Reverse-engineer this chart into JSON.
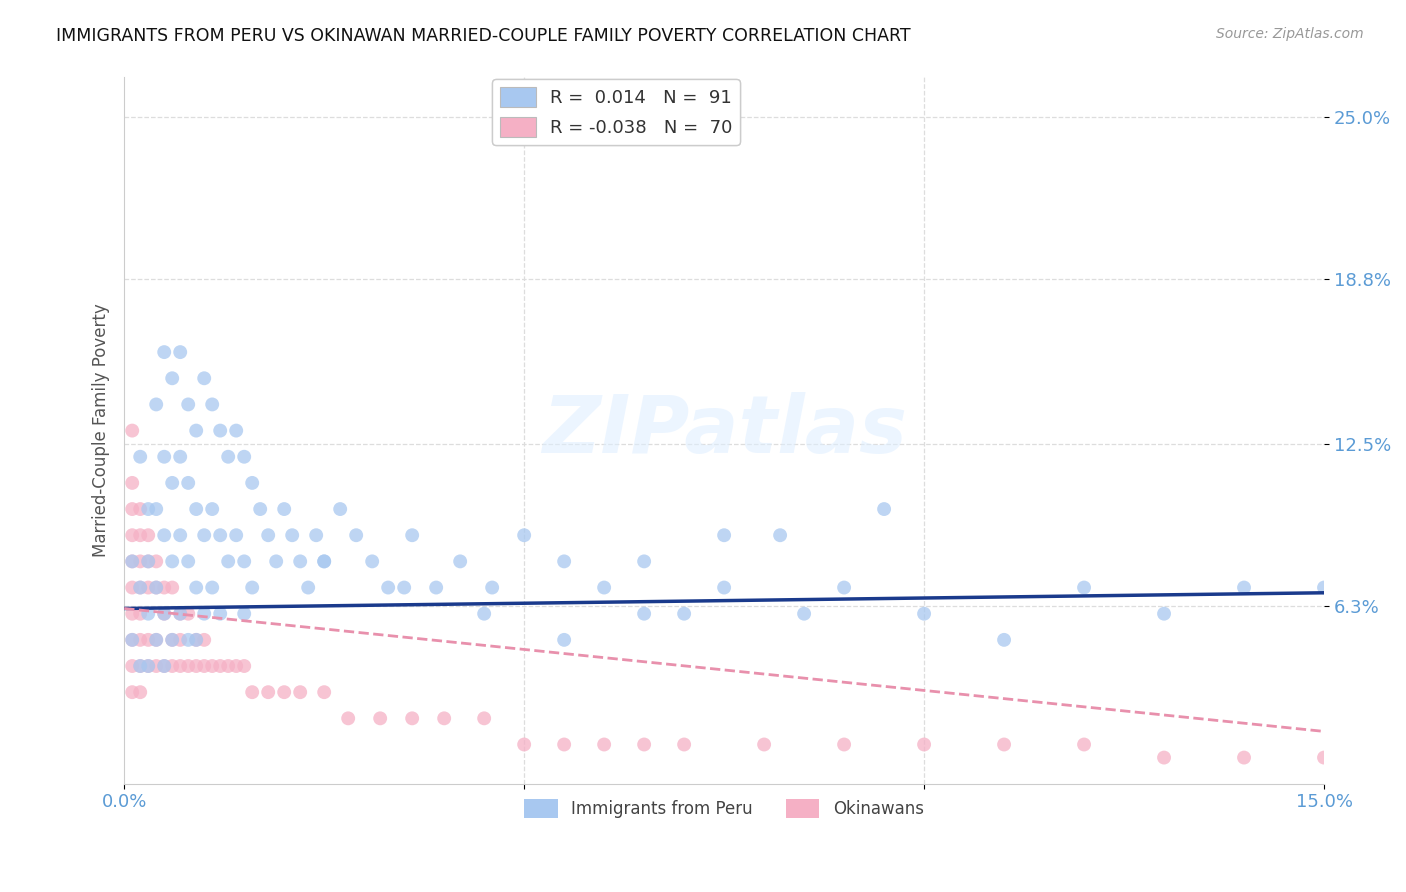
{
  "title": "IMMIGRANTS FROM PERU VS OKINAWAN MARRIED-COUPLE FAMILY POVERTY CORRELATION CHART",
  "source": "Source: ZipAtlas.com",
  "ylabel": "Married-Couple Family Poverty",
  "xmin": 0.0,
  "xmax": 0.15,
  "ymin": -0.005,
  "ymax": 0.265,
  "ytick_vals": [
    0.063,
    0.125,
    0.188,
    0.25
  ],
  "ytick_labels": [
    "6.3%",
    "12.5%",
    "18.8%",
    "25.0%"
  ],
  "xtick_vals": [
    0.0,
    0.05,
    0.1,
    0.15
  ],
  "xtick_labels": [
    "0.0%",
    "",
    "",
    "15.0%"
  ],
  "blue_color": "#a8c8f0",
  "pink_color": "#f5b0c5",
  "blue_line_color": "#1a3a8c",
  "pink_line_color": "#e890ac",
  "tick_label_color": "#5b9bd5",
  "legend_label1": "Immigrants from Peru",
  "legend_label2": "Okinawans",
  "R_blue": 0.014,
  "N_blue": 91,
  "R_pink": -0.038,
  "N_pink": 70,
  "blue_trend_x0": 0.0,
  "blue_trend_y0": 0.062,
  "blue_trend_x1": 0.15,
  "blue_trend_y1": 0.068,
  "pink_trend_x0": 0.0,
  "pink_trend_y0": 0.062,
  "pink_trend_x1": 0.15,
  "pink_trend_y1": 0.015,
  "blue_scatter_x": [
    0.001,
    0.001,
    0.002,
    0.002,
    0.002,
    0.003,
    0.003,
    0.003,
    0.003,
    0.004,
    0.004,
    0.004,
    0.004,
    0.005,
    0.005,
    0.005,
    0.005,
    0.005,
    0.006,
    0.006,
    0.006,
    0.006,
    0.007,
    0.007,
    0.007,
    0.007,
    0.008,
    0.008,
    0.008,
    0.008,
    0.009,
    0.009,
    0.009,
    0.009,
    0.01,
    0.01,
    0.01,
    0.011,
    0.011,
    0.011,
    0.012,
    0.012,
    0.012,
    0.013,
    0.013,
    0.014,
    0.014,
    0.015,
    0.015,
    0.016,
    0.016,
    0.017,
    0.018,
    0.019,
    0.02,
    0.021,
    0.022,
    0.023,
    0.024,
    0.025,
    0.027,
    0.029,
    0.031,
    0.033,
    0.036,
    0.039,
    0.042,
    0.046,
    0.05,
    0.055,
    0.06,
    0.065,
    0.07,
    0.075,
    0.082,
    0.09,
    0.1,
    0.11,
    0.12,
    0.13,
    0.14,
    0.15,
    0.015,
    0.025,
    0.035,
    0.045,
    0.055,
    0.065,
    0.075,
    0.085,
    0.095
  ],
  "blue_scatter_y": [
    0.08,
    0.05,
    0.12,
    0.07,
    0.04,
    0.1,
    0.08,
    0.06,
    0.04,
    0.14,
    0.1,
    0.07,
    0.05,
    0.16,
    0.12,
    0.09,
    0.06,
    0.04,
    0.15,
    0.11,
    0.08,
    0.05,
    0.16,
    0.12,
    0.09,
    0.06,
    0.14,
    0.11,
    0.08,
    0.05,
    0.13,
    0.1,
    0.07,
    0.05,
    0.15,
    0.09,
    0.06,
    0.14,
    0.1,
    0.07,
    0.13,
    0.09,
    0.06,
    0.12,
    0.08,
    0.13,
    0.09,
    0.12,
    0.08,
    0.11,
    0.07,
    0.1,
    0.09,
    0.08,
    0.1,
    0.09,
    0.08,
    0.07,
    0.09,
    0.08,
    0.1,
    0.09,
    0.08,
    0.07,
    0.09,
    0.07,
    0.08,
    0.07,
    0.09,
    0.08,
    0.07,
    0.08,
    0.06,
    0.09,
    0.09,
    0.07,
    0.06,
    0.05,
    0.07,
    0.06,
    0.07,
    0.07,
    0.06,
    0.08,
    0.07,
    0.06,
    0.05,
    0.06,
    0.07,
    0.06,
    0.1
  ],
  "pink_scatter_x": [
    0.001,
    0.001,
    0.001,
    0.001,
    0.001,
    0.001,
    0.001,
    0.001,
    0.001,
    0.001,
    0.002,
    0.002,
    0.002,
    0.002,
    0.002,
    0.002,
    0.002,
    0.002,
    0.003,
    0.003,
    0.003,
    0.003,
    0.003,
    0.004,
    0.004,
    0.004,
    0.004,
    0.005,
    0.005,
    0.005,
    0.006,
    0.006,
    0.006,
    0.007,
    0.007,
    0.007,
    0.008,
    0.008,
    0.009,
    0.009,
    0.01,
    0.01,
    0.011,
    0.012,
    0.013,
    0.014,
    0.015,
    0.016,
    0.018,
    0.02,
    0.022,
    0.025,
    0.028,
    0.032,
    0.036,
    0.04,
    0.045,
    0.05,
    0.055,
    0.06,
    0.065,
    0.07,
    0.08,
    0.09,
    0.1,
    0.11,
    0.12,
    0.13,
    0.14,
    0.15
  ],
  "pink_scatter_y": [
    0.13,
    0.11,
    0.1,
    0.09,
    0.08,
    0.07,
    0.06,
    0.05,
    0.04,
    0.03,
    0.1,
    0.09,
    0.08,
    0.07,
    0.06,
    0.05,
    0.04,
    0.03,
    0.09,
    0.08,
    0.07,
    0.05,
    0.04,
    0.08,
    0.07,
    0.05,
    0.04,
    0.07,
    0.06,
    0.04,
    0.07,
    0.05,
    0.04,
    0.06,
    0.05,
    0.04,
    0.06,
    0.04,
    0.05,
    0.04,
    0.05,
    0.04,
    0.04,
    0.04,
    0.04,
    0.04,
    0.04,
    0.03,
    0.03,
    0.03,
    0.03,
    0.03,
    0.02,
    0.02,
    0.02,
    0.02,
    0.02,
    0.01,
    0.01,
    0.01,
    0.01,
    0.01,
    0.01,
    0.01,
    0.01,
    0.01,
    0.01,
    0.005,
    0.005,
    0.005
  ]
}
